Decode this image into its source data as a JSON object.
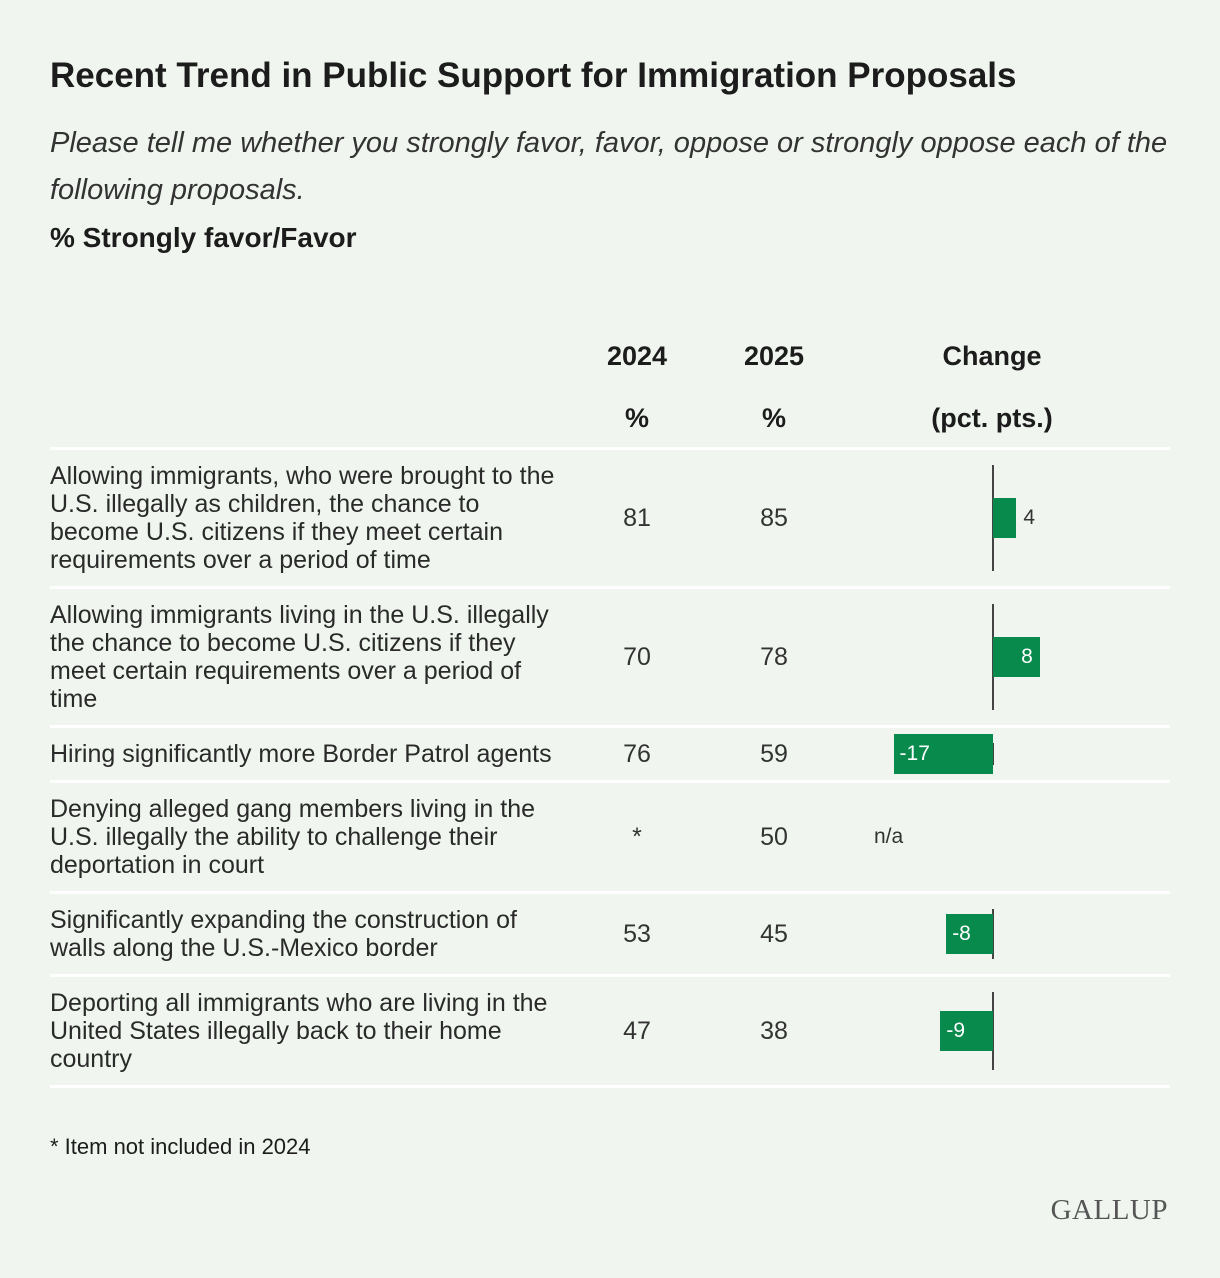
{
  "header": {
    "title": "Recent Trend in Public Support for Immigration Proposals",
    "subtitle": "Please tell me whether you strongly favor, favor, oppose or strongly oppose each of the following proposals.",
    "measure": "% Strongly favor/Favor"
  },
  "table": {
    "columns": [
      {
        "label": "2024",
        "unit": "%"
      },
      {
        "label": "2025",
        "unit": "%"
      },
      {
        "label": "Change",
        "unit": "(pct. pts.)"
      }
    ],
    "change_color": "#078a4c",
    "rows": [
      {
        "label": "Allowing immigrants, who were brought to the U.S. illegally as children, the chance to become U.S. citizens if they meet certain requirements over a period of time",
        "y2024": 81,
        "y2025": 85,
        "change": 4
      },
      {
        "label": "Allowing immigrants living in the U.S. illegally the chance to become U.S. citizens if they meet certain requirements over a period of time",
        "y2024": 70,
        "y2025": 78,
        "change": 8
      },
      {
        "label": "Hiring significantly more Border Patrol agents",
        "y2024": 76,
        "y2025": 59,
        "change": -17
      },
      {
        "label": "Denying alleged gang members living in the U.S. illegally the ability to challenge their deportation in court",
        "y2024": "*",
        "y2025": 50,
        "change": "n/a"
      },
      {
        "label": "Significantly expanding the construction of walls along the U.S.-Mexico border",
        "y2024": 53,
        "y2025": 45,
        "change": -8
      },
      {
        "label": "Deporting all immigrants who are living in the United States illegally back to their home country",
        "y2024": 47,
        "y2025": 38,
        "change": -9
      }
    ]
  },
  "footnote": "* Item not included in 2024",
  "logo": "GALLUP"
}
